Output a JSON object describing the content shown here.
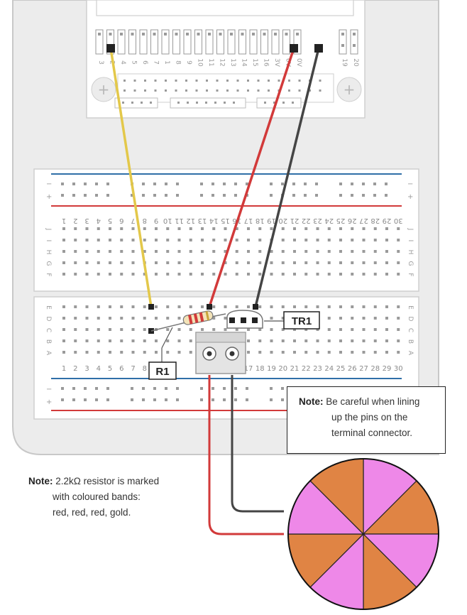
{
  "header_pins": {
    "labels": [
      "3",
      "2",
      "4",
      "5",
      "6",
      "7",
      "1",
      "8",
      "9",
      "10",
      "11",
      "12",
      "13",
      "14",
      "15",
      "16",
      "3V",
      "0V",
      "0V"
    ],
    "extra_labels": [
      "19",
      "20"
    ],
    "plus_symbol": "+"
  },
  "breadboard": {
    "column_numbers": [
      "1",
      "2",
      "3",
      "4",
      "5",
      "6",
      "7",
      "8",
      "9",
      "10",
      "11",
      "12",
      "13",
      "14",
      "15",
      "16",
      "17",
      "18",
      "19",
      "20",
      "21",
      "22",
      "23",
      "24",
      "25",
      "26",
      "27",
      "28",
      "29",
      "30"
    ],
    "upper_row_letters": [
      "J",
      "I",
      "H",
      "G",
      "F"
    ],
    "lower_row_letters": [
      "E",
      "D",
      "C",
      "B",
      "A"
    ],
    "rail_plus": "+",
    "rail_minus": "−"
  },
  "components": {
    "resistor_label": "R1",
    "transistor_label": "TR1"
  },
  "notes": {
    "terminal": {
      "prefix": "Note:",
      "line1": "Be careful when lining",
      "line2": "up the pins on the",
      "line3": "terminal connector."
    },
    "resistor": {
      "prefix": "Note:",
      "line1": "2.2kΩ resistor is marked",
      "line2": "with coloured bands:",
      "line3": "red, red, red, gold."
    }
  },
  "colors": {
    "wire_yellow": "#e3c84a",
    "wire_red": "#d23a3a",
    "wire_black": "#454545",
    "rail_blue": "#2f6fa8",
    "rail_red": "#d23a3a",
    "disc_orange": "#e08444",
    "disc_pink": "#ee88e8",
    "board_grey": "#ececec"
  }
}
